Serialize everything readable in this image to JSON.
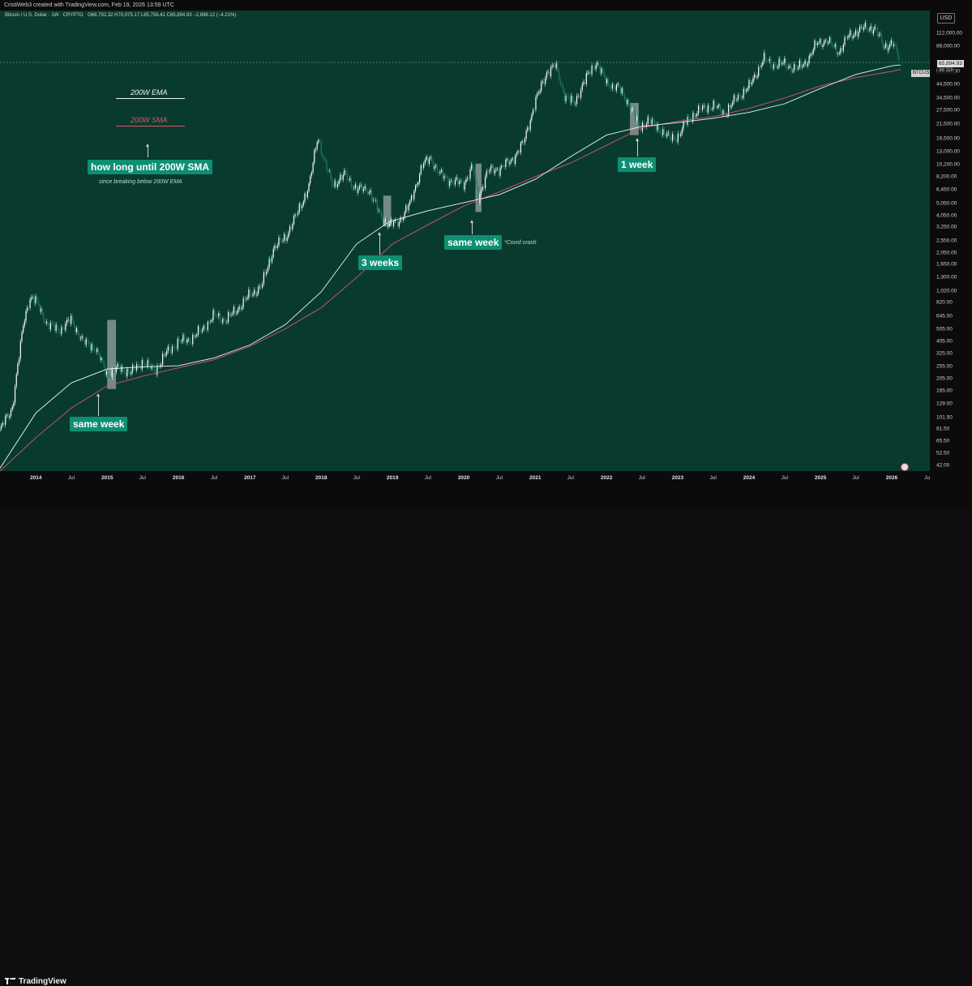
{
  "header": {
    "caption": "CristiWeb3 created with TradingView.com, Feb 19, 2026 13:59 UTC"
  },
  "legend": {
    "symbol": "Bitcoin / U.S. Dollar · 1W · CRYPTO",
    "ohlc": "O68,792.32  H70,075.17  L65,756.41  C65,894.93  −2,898.12 (−4.21%)"
  },
  "currency": "USD",
  "annotations": {
    "ema_label": "200W EMA",
    "sma_label": "200W SMA",
    "question": "how long until 200W SMA",
    "question_sub": "since breaking below 200W EMA",
    "tag_2015": "same week",
    "tag_2018": "3 weeks",
    "tag_2020": "same week",
    "tag_2020_note": "*Covid crash",
    "tag_2022": "1 week"
  },
  "price_labels": {
    "symbol_tag": "BTCUSD",
    "last_price": "65,894.93",
    "countdown": "3d 11h"
  },
  "brand": "TradingView",
  "colors": {
    "plot_bg": "#083b2e",
    "candle_up": "#ffffff",
    "candle_down": "#1a6b56",
    "ema": "#f2f2f2",
    "sma": "#e0506a",
    "tag_bg": "#0e8e72"
  },
  "chart_data": {
    "type": "line",
    "title": "Bitcoin / U.S. Dollar · 1W · CRYPTO",
    "y_scale": "log",
    "ylim": [
      38,
      170000
    ],
    "xlim": [
      "2013-07-01",
      "2026-07-15"
    ],
    "y_ticks": [
      "112,000.00",
      "88,000.00",
      "56,000.00",
      "44,500.00",
      "34,500.00",
      "27,500.00",
      "21,500.00",
      "16,500.00",
      "13,000.00",
      "10,200.00",
      "8,200.00",
      "6,450.00",
      "5,050.00",
      "4,050.00",
      "3,250.00",
      "2,550.00",
      "2,050.00",
      "1,650.00",
      "1,300.00",
      "1,020.00",
      "820.00",
      "645.00",
      "505.00",
      "405.00",
      "325.00",
      "255.00",
      "205.00",
      "165.00",
      "129.00",
      "101.50",
      "81.50",
      "65.50",
      "52.50",
      "42.00"
    ],
    "x_ticks": [
      "2014",
      "Jul",
      "2015",
      "Jul",
      "2016",
      "Jul",
      "2017",
      "Jul",
      "2018",
      "Jul",
      "2019",
      "Jul",
      "2020",
      "Jul",
      "2021",
      "Jul",
      "2022",
      "Jul",
      "2023",
      "Jul",
      "2024",
      "Jul",
      "2025",
      "Jul",
      "2026",
      "Ju"
    ],
    "series": [
      {
        "name": "BTCUSD",
        "style": "candles",
        "x": [
          "2013-07-01",
          "2013-09-01",
          "2013-11-01",
          "2013-12-01",
          "2014-01-01",
          "2014-03-01",
          "2014-05-01",
          "2014-07-01",
          "2014-09-01",
          "2014-11-01",
          "2015-01-01",
          "2015-03-01",
          "2015-05-01",
          "2015-07-01",
          "2015-09-01",
          "2015-11-01",
          "2016-01-01",
          "2016-03-01",
          "2016-05-01",
          "2016-07-01",
          "2016-09-01",
          "2016-11-01",
          "2017-01-01",
          "2017-03-01",
          "2017-05-01",
          "2017-07-01",
          "2017-09-01",
          "2017-11-01",
          "2017-12-15",
          "2018-01-15",
          "2018-03-01",
          "2018-05-01",
          "2018-07-01",
          "2018-09-01",
          "2018-11-01",
          "2018-12-15",
          "2019-02-01",
          "2019-04-01",
          "2019-06-01",
          "2019-07-15",
          "2019-09-01",
          "2019-11-01",
          "2020-01-01",
          "2020-02-15",
          "2020-03-15",
          "2020-05-01",
          "2020-07-01",
          "2020-09-01",
          "2020-11-01",
          "2021-01-01",
          "2021-03-01",
          "2021-04-15",
          "2021-06-01",
          "2021-07-20",
          "2021-09-01",
          "2021-11-10",
          "2022-01-01",
          "2022-03-01",
          "2022-05-01",
          "2022-06-20",
          "2022-08-01",
          "2022-10-01",
          "2022-11-20",
          "2023-01-01",
          "2023-03-01",
          "2023-05-01",
          "2023-07-01",
          "2023-09-01",
          "2023-11-01",
          "2024-01-01",
          "2024-03-15",
          "2024-05-01",
          "2024-07-01",
          "2024-09-01",
          "2024-11-01",
          "2024-12-15",
          "2025-02-01",
          "2025-04-07",
          "2025-05-20",
          "2025-07-15",
          "2025-08-15",
          "2025-10-06",
          "2025-11-20",
          "2026-01-05",
          "2026-02-15"
        ],
        "values": [
          80,
          120,
          600,
          900,
          850,
          550,
          500,
          600,
          400,
          360,
          220,
          250,
          230,
          280,
          235,
          330,
          400,
          420,
          500,
          650,
          600,
          740,
          950,
          1100,
          2200,
          2700,
          4200,
          7000,
          17500,
          11000,
          7000,
          8500,
          6500,
          6500,
          4000,
          3400,
          3600,
          5000,
          10000,
          11500,
          8500,
          7500,
          7200,
          9800,
          5500,
          9000,
          9500,
          11000,
          15000,
          32000,
          55000,
          62000,
          36000,
          31000,
          44000,
          67000,
          45000,
          42000,
          30000,
          20000,
          23000,
          19500,
          16500,
          17000,
          24000,
          28000,
          30000,
          26000,
          35000,
          42000,
          70000,
          63000,
          64000,
          58000,
          70000,
          95000,
          98000,
          80000,
          105000,
          118000,
          123000,
          124000,
          88000,
          94000,
          66000
        ]
      },
      {
        "name": "200W EMA",
        "x": [
          "2013-07-01",
          "2014-01-01",
          "2014-07-01",
          "2015-01-01",
          "2015-07-01",
          "2016-01-01",
          "2016-07-01",
          "2017-01-01",
          "2017-07-01",
          "2018-01-01",
          "2018-07-01",
          "2018-12-15",
          "2019-07-01",
          "2020-01-01",
          "2020-07-01",
          "2021-01-01",
          "2021-07-01",
          "2022-01-01",
          "2022-07-01",
          "2023-01-01",
          "2023-07-01",
          "2024-01-01",
          "2024-07-01",
          "2025-01-01",
          "2025-07-01",
          "2026-01-01",
          "2026-02-15"
        ],
        "values": [
          40,
          110,
          190,
          245,
          255,
          260,
          300,
          380,
          550,
          1000,
          2400,
          3600,
          4400,
          5100,
          5900,
          7800,
          11800,
          17500,
          20500,
          22000,
          23800,
          26500,
          31000,
          41000,
          53000,
          62000,
          63000
        ]
      },
      {
        "name": "200W SMA",
        "x": [
          "2013-07-01",
          "2014-01-01",
          "2014-07-01",
          "2015-01-01",
          "2015-07-01",
          "2016-01-01",
          "2016-07-01",
          "2017-01-01",
          "2017-07-01",
          "2018-01-01",
          "2018-07-01",
          "2019-01-01",
          "2019-07-01",
          "2020-01-01",
          "2020-07-01",
          "2021-01-01",
          "2021-07-01",
          "2022-01-01",
          "2022-07-01",
          "2023-01-01",
          "2023-07-01",
          "2024-01-01",
          "2024-07-01",
          "2025-01-01",
          "2025-07-01",
          "2026-01-01",
          "2026-02-15"
        ],
        "values": [
          38,
          70,
          120,
          180,
          215,
          250,
          290,
          370,
          510,
          750,
          1300,
          2400,
          3400,
          4800,
          6200,
          8200,
          10500,
          14500,
          20000,
          22500,
          24500,
          28500,
          34500,
          43000,
          50000,
          56000,
          58000
        ]
      }
    ],
    "highlights": [
      {
        "from": "2015-01-01",
        "to": "2015-02-15",
        "low": 170,
        "high": 600
      },
      {
        "from": "2018-11-15",
        "to": "2018-12-25",
        "low": 3300,
        "high": 5800
      },
      {
        "from": "2020-03-01",
        "to": "2020-04-01",
        "low": 4300,
        "high": 10400
      },
      {
        "from": "2022-05-01",
        "to": "2022-06-15",
        "low": 17500,
        "high": 31500
      }
    ]
  }
}
